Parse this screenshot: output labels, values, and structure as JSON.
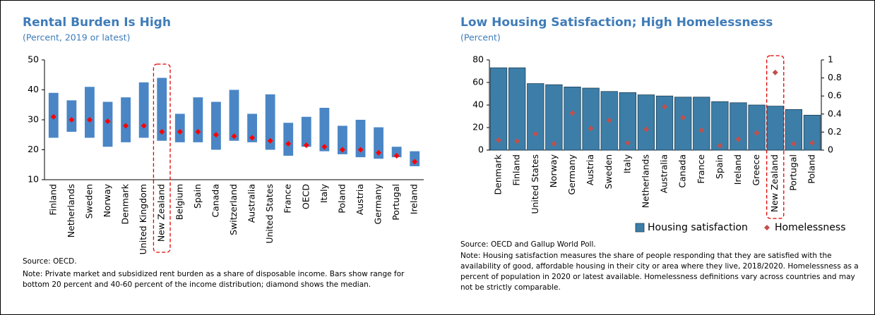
{
  "chart_data": [
    {
      "type": "range-bar",
      "title": "Rental Burden Is High",
      "subtitle": "(Percent, 2019 or latest)",
      "categories": [
        "Finland",
        "Netherlands",
        "Sweden",
        "Norway",
        "Denmark",
        "United Kingdom",
        "New Zealand",
        "Belgium",
        "Spain",
        "Canada",
        "Switzerland",
        "Australia",
        "United States",
        "France",
        "OECD",
        "Italy",
        "Poland",
        "Austria",
        "Germany",
        "Portugal",
        "Ireland"
      ],
      "low": [
        24,
        26,
        24,
        21,
        22.5,
        24,
        23,
        22.5,
        22.5,
        20,
        23,
        22.5,
        20,
        18,
        21,
        19.5,
        18.5,
        17.5,
        17,
        17.5,
        14.5
      ],
      "high": [
        39,
        36.5,
        41,
        36,
        37.5,
        42.5,
        44,
        32,
        37.5,
        36,
        40,
        32,
        38.5,
        29,
        31,
        34,
        28,
        30,
        27.5,
        21,
        19.5
      ],
      "median": [
        31,
        30,
        30,
        29.5,
        28,
        28,
        26,
        26,
        26,
        25,
        24.5,
        24,
        23,
        22,
        21.5,
        21,
        20,
        20,
        19,
        18,
        16
      ],
      "color": "#4a86c5",
      "median_color": "#ff0000",
      "ylim": [
        10,
        50
      ],
      "yticks": [
        10,
        20,
        30,
        40,
        50
      ],
      "highlight": "New Zealand",
      "source": "Source: OECD.",
      "note": "Note: Private market and subsidized rent burden as a share of disposable income. Bars show range for bottom 20 percent and 40-60 percent of the income distribution; diamond shows the median."
    },
    {
      "type": "bar",
      "title": "Low Housing Satisfaction; High Homelessness",
      "subtitle": "(Percent)",
      "categories": [
        "Denmark",
        "Finland",
        "United States",
        "Norway",
        "Germany",
        "Austria",
        "Sweden",
        "Italy",
        "Netherlands",
        "Australia",
        "Canada",
        "France",
        "Spain",
        "Ireland",
        "Greece",
        "New Zealand",
        "Portugal",
        "Poland"
      ],
      "series": [
        {
          "name": "Housing satisfaction",
          "color": "#3c7ea8",
          "values": [
            73,
            73,
            59,
            58,
            56,
            55,
            52,
            51,
            49,
            48,
            47,
            47,
            43,
            42,
            40,
            39,
            36,
            31
          ]
        },
        {
          "name": "Homelessness",
          "color": "#c0504d",
          "marker": "diamond",
          "axis": "y2",
          "values": [
            0.11,
            0.1,
            0.18,
            0.07,
            0.41,
            0.24,
            0.33,
            0.08,
            0.23,
            0.48,
            0.36,
            0.22,
            0.05,
            0.12,
            0.19,
            0.86,
            0.07,
            0.08
          ]
        }
      ],
      "ylim": [
        0,
        80
      ],
      "yticks": [
        0,
        20,
        40,
        60,
        80
      ],
      "y2lim": [
        0,
        1
      ],
      "y2ticks": [
        0,
        0.2,
        0.4,
        0.6,
        0.8,
        1
      ],
      "highlight": "New Zealand",
      "source": "Source: OECD and Gallup World Poll.",
      "note": "Note: Housing satisfaction measures the share of people responding that they are satisfied with the availability of good, affordable housing in their city or area where they live, 2018/2020. Homelessness as a percent of population in 2020 or latest available. Homelessness definitions vary across countries and may not be strictly comparable."
    }
  ]
}
